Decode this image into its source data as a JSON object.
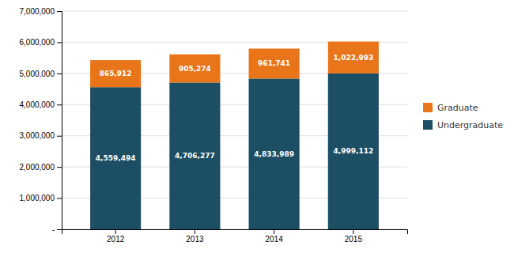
{
  "chart_data": {
    "type": "bar",
    "stacked": true,
    "categories": [
      "2012",
      "2013",
      "2014",
      "2015"
    ],
    "series": [
      {
        "name": "Undergraduate",
        "color": "#1c4f63",
        "values": [
          4559494,
          4706277,
          4833989,
          4999112
        ],
        "value_labels": [
          "4,559,494",
          "4,706,277",
          "4,833,989",
          "4,999,112"
        ]
      },
      {
        "name": "Graduate",
        "color": "#e8751a",
        "values": [
          865912,
          905274,
          961741,
          1022993
        ],
        "value_labels": [
          "865,912",
          "905,274",
          "961,741",
          "1,022,993"
        ]
      }
    ],
    "ylim": [
      0,
      7000000
    ],
    "yticks": [
      {
        "value": 0,
        "label": "-"
      },
      {
        "value": 1000000,
        "label": "1,000,000"
      },
      {
        "value": 2000000,
        "label": "2,000,000"
      },
      {
        "value": 3000000,
        "label": "3,000,000"
      },
      {
        "value": 4000000,
        "label": "4,000,000"
      },
      {
        "value": 5000000,
        "label": "5,000,000"
      },
      {
        "value": 6000000,
        "label": "6,000,000"
      },
      {
        "value": 7000000,
        "label": "7,000,000"
      }
    ],
    "grid": true,
    "data_labels": true,
    "legend": "right"
  }
}
